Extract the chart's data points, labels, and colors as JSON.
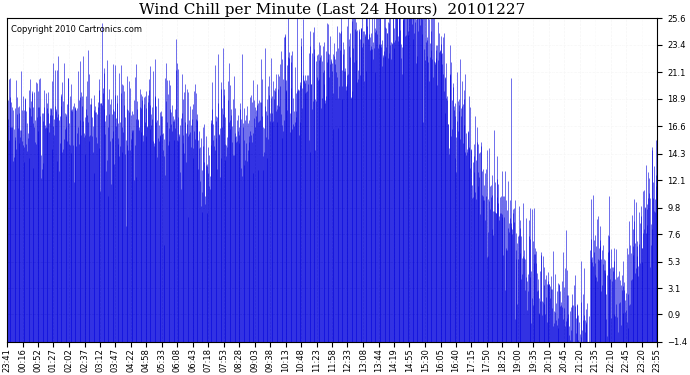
{
  "title": "Wind Chill per Minute (Last 24 Hours)  20101227",
  "copyright": "Copyright 2010 Cartronics.com",
  "yticks": [
    25.6,
    23.4,
    21.1,
    18.9,
    16.6,
    14.3,
    12.1,
    9.8,
    7.6,
    5.3,
    3.1,
    0.9,
    -1.4
  ],
  "ylim": [
    -1.4,
    25.6
  ],
  "line_color": "#0000DD",
  "bg_color": "#ffffff",
  "grid_color": "#cccccc",
  "xtick_labels": [
    "23:41",
    "00:16",
    "00:52",
    "01:27",
    "02:02",
    "02:37",
    "03:12",
    "03:47",
    "04:22",
    "04:58",
    "05:33",
    "06:08",
    "06:43",
    "07:18",
    "07:53",
    "08:28",
    "09:03",
    "09:38",
    "10:13",
    "10:48",
    "11:23",
    "11:58",
    "12:33",
    "13:08",
    "13:44",
    "14:19",
    "14:55",
    "15:30",
    "16:05",
    "16:40",
    "17:15",
    "17:50",
    "18:25",
    "19:00",
    "19:35",
    "20:10",
    "20:45",
    "21:20",
    "21:35",
    "22:10",
    "22:45",
    "23:20",
    "23:55"
  ],
  "title_fontsize": 11,
  "copyright_fontsize": 6,
  "tick_fontsize": 6
}
